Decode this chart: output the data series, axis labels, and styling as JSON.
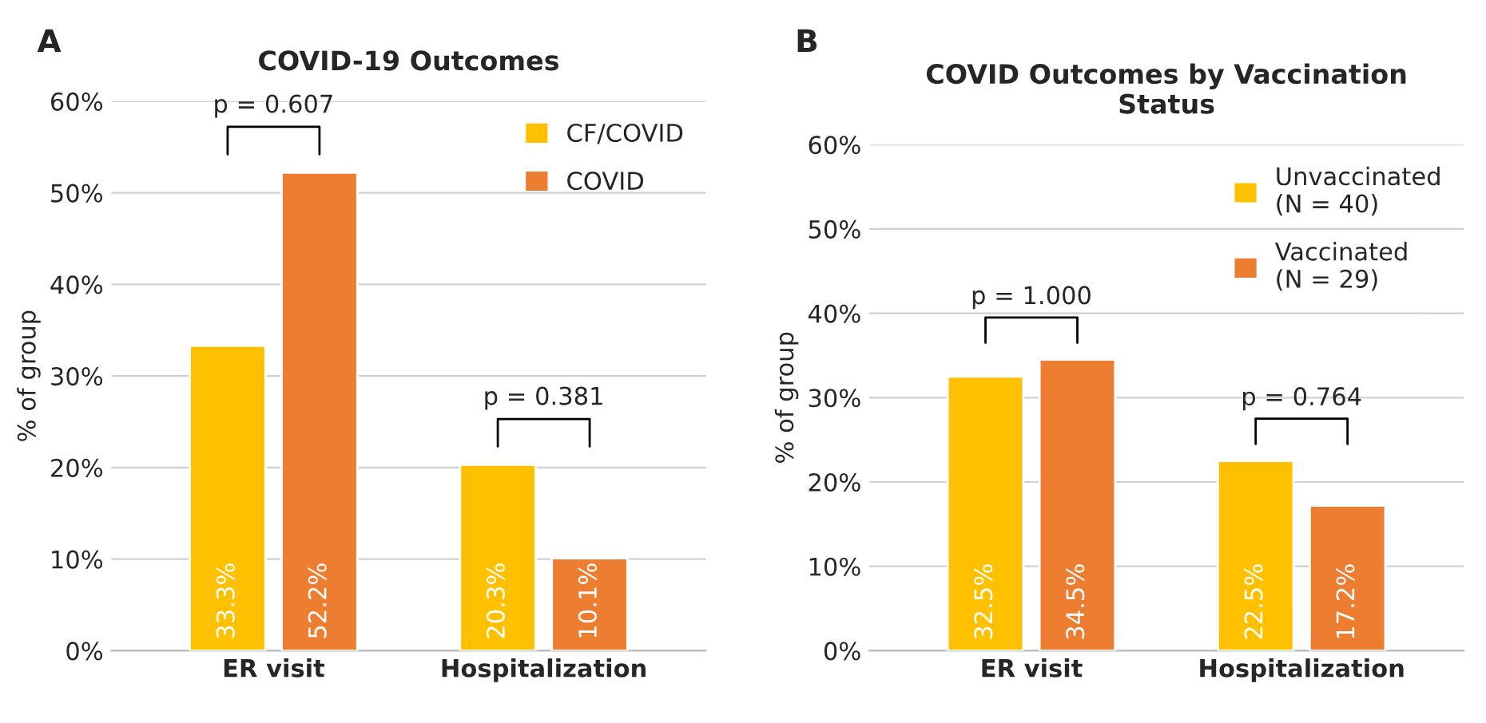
{
  "chart_data": [
    {
      "type": "bar",
      "title": "COVID-19 Outcomes",
      "ylabel": "% of group",
      "categories": [
        "ER visit",
        "Hospitalization"
      ],
      "series": [
        {
          "name": "CF/COVID",
          "color": "#ffc000",
          "values": [
            33.3,
            20.3
          ],
          "value_labels": [
            "33.3%",
            "20.3%"
          ]
        },
        {
          "name": "COVID",
          "color": "#ed7d31",
          "values": [
            52.2,
            10.1
          ],
          "value_labels": [
            "52.2%",
            "10.1%"
          ]
        }
      ],
      "ylim": [
        0,
        60
      ],
      "yticks": [
        {
          "value": 0,
          "label": "0%"
        },
        {
          "value": 10,
          "label": "10%"
        },
        {
          "value": 20,
          "label": "20%"
        },
        {
          "value": 30,
          "label": "30%"
        },
        {
          "value": 40,
          "label": "40%"
        },
        {
          "value": 50,
          "label": "50%"
        },
        {
          "value": 60,
          "label": "60%"
        }
      ],
      "grid": "y",
      "legend": "top right",
      "annotations": [
        "A",
        "p = 0.607",
        "p = 0.381"
      ]
    },
    {
      "type": "bar",
      "title": "COVID Outcomes by Vaccination\nStatus",
      "ylabel": "% of group",
      "categories": [
        "ER visit",
        "Hospitalization"
      ],
      "series": [
        {
          "name": "Unvaccinated\n(N = 40)",
          "color": "#ffc000",
          "values": [
            32.5,
            22.5
          ],
          "value_labels": [
            "32.5%",
            "22.5%"
          ]
        },
        {
          "name": "Vaccinated\n(N = 29)",
          "color": "#ed7d31",
          "values": [
            34.5,
            17.2
          ],
          "value_labels": [
            "34.5%",
            "17.2%"
          ]
        }
      ],
      "ylim": [
        0,
        60
      ],
      "yticks": [
        {
          "value": 0,
          "label": "0%"
        },
        {
          "value": 10,
          "label": "10%"
        },
        {
          "value": 20,
          "label": "20%"
        },
        {
          "value": 30,
          "label": "30%"
        },
        {
          "value": 40,
          "label": "40%"
        },
        {
          "value": 50,
          "label": "50%"
        },
        {
          "value": 60,
          "label": "60%"
        }
      ],
      "grid": "y",
      "legend": "top right",
      "annotations": [
        "B",
        "p = 1.000",
        "p = 0.764"
      ]
    }
  ]
}
